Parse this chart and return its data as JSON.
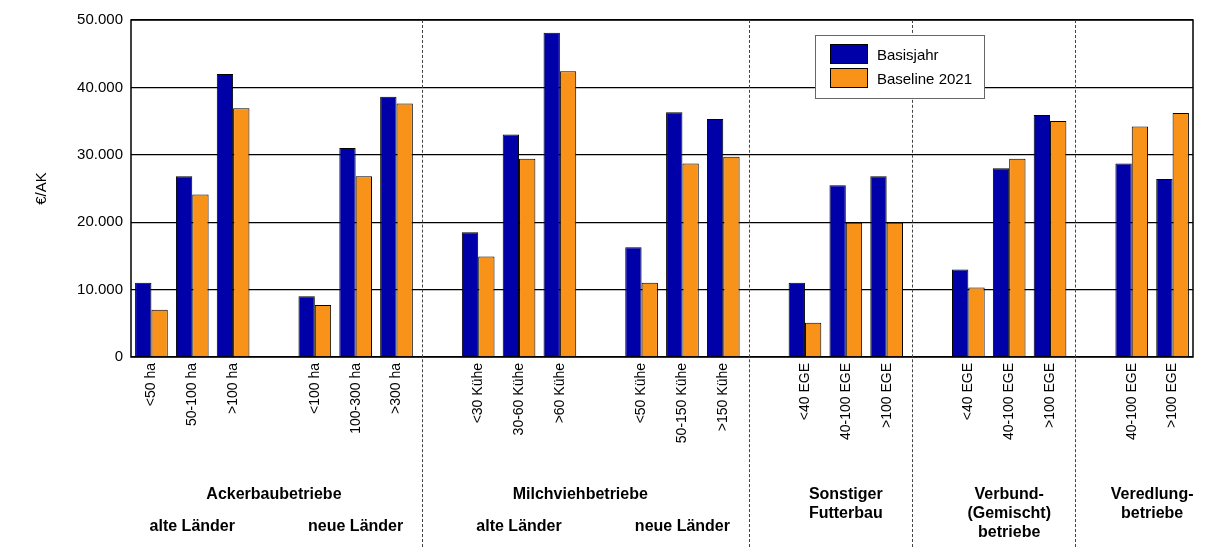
{
  "chart_data": {
    "type": "bar",
    "ylabel": "€/AK",
    "categories": [
      "<50 ha",
      "50-100 ha",
      ">100 ha",
      null,
      "<100 ha",
      "100-300 ha",
      ">300 ha",
      null,
      "<30 Kühe",
      "30-60 Kühe",
      ">60 Kühe",
      null,
      "<50 Kühe",
      "50-150 Kühe",
      ">150 Kühe",
      null,
      "<40 EGE",
      "40-100 EGE",
      ">100 EGE",
      null,
      "<40 EGE",
      "40-100 EGE",
      ">100 EGE",
      null,
      "40-100 EGE",
      ">100 EGE"
    ],
    "series": [
      {
        "name": "Basisjahr",
        "color": "#0000a8",
        "values": [
          11000,
          26800,
          42000,
          null,
          9000,
          31000,
          38600,
          null,
          18500,
          33000,
          48100,
          null,
          16300,
          36300,
          35300,
          null,
          11000,
          25500,
          26800,
          null,
          13000,
          28000,
          35900,
          null,
          28700,
          26400
        ]
      },
      {
        "name": "Baseline 2021",
        "color": "#f99219",
        "values": [
          7000,
          24100,
          36900,
          null,
          7700,
          26800,
          37600,
          null,
          14900,
          29400,
          42400,
          null,
          11000,
          28700,
          29700,
          null,
          5100,
          19900,
          19900,
          null,
          10300,
          29400,
          35000,
          null,
          34200,
          36200
        ]
      }
    ],
    "ylim": [
      0,
      50000
    ],
    "yticks": [
      {
        "value": 0,
        "label": "0"
      },
      {
        "value": 10000,
        "label": "10.000"
      },
      {
        "value": 20000,
        "label": "20.000"
      },
      {
        "value": 30000,
        "label": "30.000"
      },
      {
        "value": 40000,
        "label": "40.000"
      },
      {
        "value": 50000,
        "label": "50.000"
      }
    ],
    "grid": "y",
    "legend": "top right",
    "annotations": [
      "Ackerbaubetriebe",
      "alte Länder",
      "neue Länder",
      "Milchviehbetriebe",
      "alte Länder",
      "neue Länder",
      "Sonstiger\nFutterbau",
      "Verbund-\n(Gemischt)\nbetriebe",
      "Veredlung-\nbetriebe"
    ]
  }
}
